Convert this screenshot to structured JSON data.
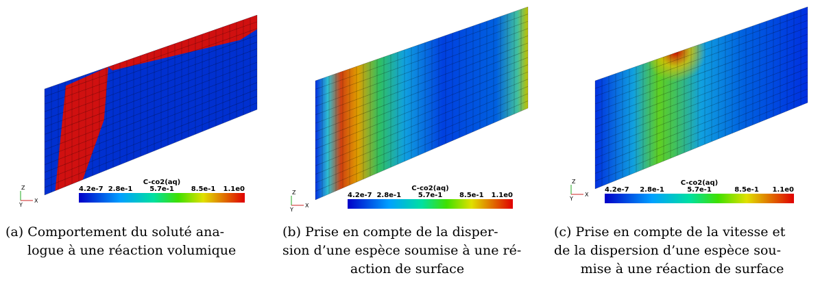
{
  "panels": [
    {
      "legend": {
        "title": "C-co2(aq)",
        "labels": [
          "4.2e-7",
          "2.8e-1",
          "5.7e-1",
          "8.5e-1",
          "1.1e0"
        ]
      },
      "axes": [
        "Z",
        "Y",
        "X"
      ],
      "caption": [
        "(a) Comportement du soluté ana-",
        "logue à une réaction volumique"
      ]
    },
    {
      "legend": {
        "title": "C-co2(aq)",
        "labels": [
          "4.2e-7",
          "2.8e-1",
          "5.7e-1",
          "8.5e-1",
          "1.1e0"
        ]
      },
      "axes": [
        "Z",
        "Y",
        "X"
      ],
      "caption": [
        "(b) Prise en compte de la disper-",
        "sion d’une espèce soumise à une ré-",
        "action de surface"
      ]
    },
    {
      "legend": {
        "title": "C-co2(aq)",
        "labels": [
          "4.2e-7",
          "2.8e-1",
          "5.7e-1",
          "8.5e-1",
          "1.1e0"
        ]
      },
      "axes": [
        "Z",
        "Y",
        "X"
      ],
      "caption": [
        "(c) Prise en compte de la vitesse et",
        "de la dispersion d’une espèce sou-",
        "mise à une réaction de surface"
      ]
    }
  ]
}
